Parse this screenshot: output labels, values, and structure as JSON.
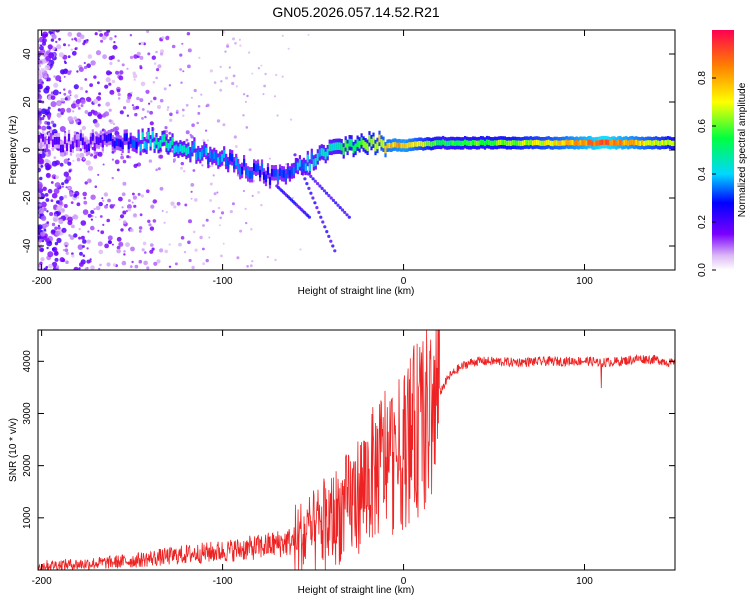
{
  "title": "GN05.2026.057.14.52.R21",
  "colors": {
    "snr_line": "#ee2222",
    "axis": "#000000",
    "background": "#ffffff"
  },
  "chart_data": [
    {
      "type": "heatmap",
      "name": "spectrogram",
      "xlabel": "Height of straight line (km)",
      "ylabel": "Frequency (Hz)",
      "xlim": [
        -202,
        150
      ],
      "ylim": [
        -50,
        50
      ],
      "xticks": [
        -200,
        -100,
        0,
        100
      ],
      "yticks": [
        -40,
        -20,
        0,
        20,
        40
      ],
      "colorbar": {
        "label": "Normalized spectral amplitude",
        "range": [
          0,
          1
        ],
        "ticks": [
          0,
          0.2,
          0.4,
          0.6,
          0.8
        ]
      },
      "ridge": [
        {
          "x": -190,
          "y": 3,
          "amp": 0.15
        },
        {
          "x": -170,
          "y": 3,
          "amp": 0.2
        },
        {
          "x": -150,
          "y": 3,
          "amp": 0.3
        },
        {
          "x": -140,
          "y": 4,
          "amp": 0.45
        },
        {
          "x": -130,
          "y": 3,
          "amp": 0.45
        },
        {
          "x": -120,
          "y": 1,
          "amp": 0.4
        },
        {
          "x": -110,
          "y": -2,
          "amp": 0.35
        },
        {
          "x": -100,
          "y": -4,
          "amp": 0.35
        },
        {
          "x": -90,
          "y": -7,
          "amp": 0.3
        },
        {
          "x": -80,
          "y": -9,
          "amp": 0.3
        },
        {
          "x": -70,
          "y": -12,
          "amp": 0.3
        },
        {
          "x": -60,
          "y": -8,
          "amp": 0.35
        },
        {
          "x": -50,
          "y": -4,
          "amp": 0.4
        },
        {
          "x": -40,
          "y": 0,
          "amp": 0.45
        },
        {
          "x": -30,
          "y": 2,
          "amp": 0.55
        },
        {
          "x": -20,
          "y": 3,
          "amp": 0.6
        },
        {
          "x": -10,
          "y": 2,
          "amp": 0.75
        },
        {
          "x": 0,
          "y": 2,
          "amp": 0.8
        },
        {
          "x": 20,
          "y": 3,
          "amp": 0.55
        },
        {
          "x": 50,
          "y": 3,
          "amp": 0.6
        },
        {
          "x": 80,
          "y": 3,
          "amp": 0.7
        },
        {
          "x": 110,
          "y": 3,
          "amp": 0.9
        },
        {
          "x": 150,
          "y": 3,
          "amp": 0.6
        }
      ]
    },
    {
      "type": "line",
      "name": "snr",
      "xlabel": "Height of straight line (km)",
      "ylabel": "SNR (10 * v/v)",
      "xlim": [
        -202,
        150
      ],
      "ylim": [
        0,
        4600
      ],
      "xticks": [
        -200,
        -100,
        0,
        100
      ],
      "yticks": [
        1000,
        2000,
        3000,
        4000
      ],
      "series": [
        {
          "name": "SNR",
          "x": [
            -202,
            -190,
            -180,
            -170,
            -160,
            -150,
            -140,
            -130,
            -120,
            -110,
            -100,
            -90,
            -80,
            -70,
            -60,
            -55,
            -50,
            -45,
            -40,
            -35,
            -30,
            -25,
            -20,
            -15,
            -10,
            -5,
            0,
            5,
            10,
            15,
            20,
            25,
            30,
            35,
            40,
            50,
            60,
            70,
            80,
            90,
            100,
            110,
            120,
            130,
            140,
            150
          ],
          "y": [
            80,
            100,
            110,
            130,
            150,
            180,
            220,
            260,
            300,
            330,
            360,
            400,
            440,
            500,
            560,
            620,
            700,
            850,
            950,
            1100,
            1250,
            1450,
            1700,
            1900,
            2200,
            2100,
            2300,
            2600,
            2800,
            2950,
            3400,
            3700,
            3850,
            3950,
            4000,
            4000,
            3980,
            3990,
            4000,
            4000,
            4010,
            3980,
            4000,
            4050,
            4030,
            3950
          ]
        }
      ]
    }
  ]
}
